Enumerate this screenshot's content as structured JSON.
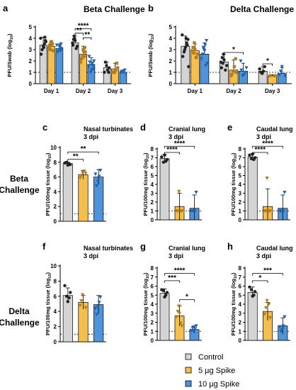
{
  "colors": {
    "control": "#d4d4d4",
    "spike5": "#f5bf4f",
    "spike10": "#4f93d8",
    "control_pt": "#222222",
    "spike5_pt": "#b07d1e",
    "spike10_pt": "#1f63b0"
  },
  "legend": [
    {
      "label": "Control",
      "color_key": "control"
    },
    {
      "label": "5 µg Spike",
      "color_key": "spike5"
    },
    {
      "label": "10 µg Spike",
      "color_key": "spike10"
    }
  ],
  "row_labels": [
    {
      "line1": "Beta",
      "line2": "Challenge"
    },
    {
      "line1": "Delta",
      "line2": "Challenge"
    }
  ],
  "chart_data": [
    {
      "id": "a",
      "type": "bar",
      "panel_letter": "a",
      "title": "Beta Challenge",
      "ylabel": "PFU/Swab (log",
      "ylabel_sub": "10",
      "ylim": [
        0,
        5
      ],
      "yticks": [
        "0",
        "1",
        "2",
        "3",
        "4",
        "5"
      ],
      "categories": [
        "Day 1",
        "Day 2",
        "Day 3"
      ],
      "series": [
        {
          "name": "Control",
          "values": [
            3.4,
            3.6,
            1.4
          ],
          "errors": [
            0.7,
            0.6,
            0.5
          ],
          "points": [
            [
              4.0,
              3.8,
              3.5,
              3.3,
              3.0,
              2.6,
              3.7,
              4.1,
              3.2
            ],
            [
              4.0,
              3.9,
              3.6,
              3.3,
              3.1,
              3.8,
              4.2,
              3.4
            ],
            [
              1.0,
              1.2,
              1.6,
              1.9,
              1.0,
              1.4
            ]
          ]
        },
        {
          "name": "5 µg Spike",
          "values": [
            3.3,
            2.6,
            1.3
          ],
          "errors": [
            0.5,
            0.7,
            0.5
          ],
          "points": [
            [
              3.6,
              3.4,
              3.1,
              2.9,
              3.5,
              3.7,
              3.0,
              3.3
            ],
            [
              3.2,
              2.9,
              2.5,
              2.2,
              1.9,
              2.8,
              2.4,
              3.0
            ],
            [
              1.0,
              1.4,
              1.8,
              1.2,
              1.0
            ]
          ]
        },
        {
          "name": "10 µg Spike",
          "values": [
            3.1,
            1.7,
            1.0
          ],
          "errors": [
            0.4,
            0.6,
            0.2
          ],
          "points": [
            [
              3.5,
              3.2,
              3.0,
              2.8,
              3.4,
              3.1,
              2.9,
              3.3
            ],
            [
              2.4,
              2.0,
              1.6,
              1.2,
              1.0,
              1.9,
              1.5,
              1.3,
              1.8
            ],
            [
              1.0,
              1.1,
              1.0,
              0.9,
              1.2
            ]
          ]
        }
      ],
      "dashed_line": 1,
      "significance": [
        {
          "cat": 1,
          "from": 0,
          "to": 2,
          "label": "****",
          "y": 4.85
        },
        {
          "cat": 1,
          "from": 0,
          "to": 1,
          "label": "**",
          "y": 4.45
        },
        {
          "cat": 1,
          "from": 1,
          "to": 2,
          "label": "**",
          "y": 4.05
        }
      ]
    },
    {
      "id": "b",
      "type": "bar",
      "panel_letter": "b",
      "title": "Delta Challenge",
      "ylabel": "PFU/Swab (log",
      "ylabel_sub": "10",
      "ylim": [
        0,
        5
      ],
      "yticks": [
        "0",
        "1",
        "2",
        "3",
        "4",
        "5"
      ],
      "categories": [
        "Day 1",
        "Day 2",
        "Day 3"
      ],
      "series": [
        {
          "name": "Control",
          "values": [
            3.3,
            1.9,
            1.1
          ],
          "errors": [
            0.9,
            0.7,
            0.4
          ],
          "points": [
            [
              4.3,
              3.9,
              3.6,
              3.2,
              2.8,
              2.4,
              1.5,
              3.4,
              4.0,
              3.0
            ],
            [
              2.6,
              2.3,
              1.9,
              1.6,
              1.2,
              2.1,
              1.8,
              1.4
            ],
            [
              1.5,
              1.1,
              0.9,
              1.0,
              1.3
            ]
          ]
        },
        {
          "name": "5 µg Spike",
          "values": [
            2.9,
            1.2,
            0.7
          ],
          "errors": [
            0.6,
            0.9,
            0.1
          ],
          "points": [
            [
              3.6,
              3.2,
              2.9,
              2.6,
              2.3,
              3.0,
              2.7
            ],
            [
              2.2,
              1.5,
              1.1,
              0.8,
              0.7,
              1.0
            ],
            [
              0.7,
              0.7,
              0.7
            ]
          ]
        },
        {
          "name": "10 µg Spike",
          "values": [
            2.6,
            1.1,
            0.9
          ],
          "errors": [
            1.0,
            0.7,
            0.5
          ],
          "points": [
            [
              3.8,
              3.4,
              3.0,
              2.6,
              2.2,
              1.8,
              1.6,
              2.9,
              3.2
            ],
            [
              2.0,
              1.4,
              1.0,
              0.8,
              0.7,
              1.2
            ],
            [
              1.5,
              1.1,
              0.8,
              0.7
            ]
          ]
        }
      ],
      "dashed_line": 1,
      "significance": [
        {
          "cat": 1,
          "from": 0,
          "to": 2,
          "label": "*",
          "y": 2.75
        },
        {
          "cat": 2,
          "from": 0,
          "to": 1,
          "label": "*",
          "y": 1.75
        }
      ]
    },
    {
      "id": "c",
      "type": "bar",
      "panel_letter": "c",
      "title": "Nasal turbinates",
      "subtitle": "3 dpi",
      "ylabel": "PFU/100mg tissue (log",
      "ylabel_sub": "10",
      "ylim": [
        0,
        10
      ],
      "yticks": [
        "0",
        "2",
        "4",
        "6",
        "8",
        "10"
      ],
      "categories": [
        "Control",
        "5 µg Spike",
        "10 µg Spike"
      ],
      "series": [
        {
          "name": "",
          "values": [
            7.8,
            6.3,
            6.0
          ],
          "errors": [
            0.2,
            0.6,
            1.0
          ],
          "points": [
            [
              7.9,
              7.7,
              7.8,
              7.6,
              8.0
            ],
            [
              6.6,
              6.2,
              5.9,
              6.5,
              6.8
            ],
            [
              6.9,
              6.1,
              5.4,
              4.8,
              6.4
            ]
          ]
        }
      ],
      "dashed_line": 1,
      "significance": [
        {
          "from": 0,
          "to": 2,
          "label": "**",
          "y": 9.4
        },
        {
          "from": 0,
          "to": 1,
          "label": "**",
          "y": 8.4
        }
      ]
    },
    {
      "id": "d",
      "type": "bar",
      "panel_letter": "d",
      "title": "Cranial lung",
      "subtitle": "3 dpi",
      "ylabel": "PFU/100mg tissue (log",
      "ylabel_sub": "10",
      "ylim": [
        0,
        8
      ],
      "yticks": [
        "0",
        "1",
        "2",
        "3",
        "4",
        "5",
        "6",
        "7",
        "8"
      ],
      "categories": [
        "Control",
        "5 µg Spike",
        "10 µg Spike"
      ],
      "series": [
        {
          "name": "",
          "values": [
            6.9,
            1.5,
            1.3
          ],
          "errors": [
            0.5,
            1.5,
            1.5
          ],
          "points": [
            [
              7.1,
              6.8,
              6.6,
              7.3,
              6.5
            ],
            [
              3.2,
              1.0,
              1.0,
              1.0,
              1.0
            ],
            [
              3.1,
              1.0,
              1.0,
              1.0,
              1.0
            ]
          ]
        }
      ],
      "dashed_line": 1,
      "significance": [
        {
          "from": 0,
          "to": 2,
          "label": "****",
          "y": 8.3
        },
        {
          "from": 0,
          "to": 1,
          "label": "****",
          "y": 7.6
        }
      ]
    },
    {
      "id": "e",
      "type": "bar",
      "panel_letter": "e",
      "title": "Caudal lung",
      "subtitle": "3 dpi",
      "ylabel": "PFU/100mg tissue (log",
      "ylabel_sub": "10",
      "ylim": [
        0,
        8
      ],
      "yticks": [
        "0",
        "1",
        "2",
        "3",
        "4",
        "5",
        "6",
        "7",
        "8"
      ],
      "categories": [
        "Control",
        "5 µg Spike",
        "10 µg Spike"
      ],
      "series": [
        {
          "name": "",
          "values": [
            7.1,
            1.5,
            1.3
          ],
          "errors": [
            0.4,
            2.0,
            1.5
          ],
          "points": [
            [
              7.3,
              7.0,
              6.8,
              7.4,
              6.9
            ],
            [
              4.7,
              1.0,
              1.0,
              1.0,
              1.0
            ],
            [
              3.1,
              1.0,
              1.0,
              1.0,
              1.0
            ]
          ]
        }
      ],
      "dashed_line": 1,
      "significance": [
        {
          "from": 0,
          "to": 2,
          "label": "****",
          "y": 8.3
        },
        {
          "from": 0,
          "to": 1,
          "label": "****",
          "y": 7.6
        }
      ]
    },
    {
      "id": "f",
      "type": "bar",
      "panel_letter": "f",
      "title": "Nasal turbinates",
      "subtitle": "3 dpi",
      "ylabel": "PFU/100mg tissue (log",
      "ylabel_sub": "10",
      "ylim": [
        0,
        10
      ],
      "yticks": [
        "0",
        "2",
        "4",
        "6",
        "8",
        "10"
      ],
      "categories": [
        "Control",
        "5 µg Spike",
        "10 µg Spike"
      ],
      "series": [
        {
          "name": "",
          "values": [
            6.1,
            5.2,
            4.9
          ],
          "errors": [
            1.0,
            0.9,
            1.2
          ],
          "points": [
            [
              7.4,
              6.5,
              5.8,
              5.3,
              6.0
            ],
            [
              6.2,
              5.4,
              4.8,
              4.5
            ],
            [
              5.9,
              5.2,
              4.6,
              3.6,
              4.4
            ]
          ]
        }
      ],
      "dashed_line": 1,
      "significance": []
    },
    {
      "id": "g",
      "type": "bar",
      "panel_letter": "g",
      "title": "Cranial lung",
      "subtitle": "3 dpi",
      "ylabel": "PFU/100mg tissue (log",
      "ylabel_sub": "10",
      "ylim": [
        0,
        8
      ],
      "yticks": [
        "0",
        "1",
        "2",
        "3",
        "4",
        "5",
        "6",
        "7",
        "8"
      ],
      "categories": [
        "Control",
        "5 µg Spike",
        "10 µg Spike"
      ],
      "series": [
        {
          "name": "",
          "values": [
            5.2,
            2.7,
            1.2
          ],
          "errors": [
            0.5,
            1.1,
            0.4
          ],
          "points": [
            [
              5.6,
              5.3,
              5.0,
              4.8,
              5.5
            ],
            [
              3.8,
              3.2,
              2.6,
              1.6,
              1.9,
              3.0
            ],
            [
              1.6,
              1.3,
              1.0,
              1.4,
              1.1
            ]
          ]
        }
      ],
      "dashed_line": 1,
      "significance": [
        {
          "from": 0,
          "to": 2,
          "label": "****",
          "y": 7.4
        },
        {
          "from": 0,
          "to": 1,
          "label": "***",
          "y": 6.6
        },
        {
          "from": 1,
          "to": 2,
          "label": "*",
          "y": 4.5
        }
      ]
    },
    {
      "id": "h",
      "type": "bar",
      "panel_letter": "h",
      "title": "Caudal lung",
      "subtitle": "3 dpi",
      "ylabel": "PFU/100mg tissue (log",
      "ylabel_sub": "10",
      "ylim": [
        0,
        8
      ],
      "yticks": [
        "0",
        "1",
        "2",
        "3",
        "4",
        "5",
        "6",
        "7",
        "8"
      ],
      "categories": [
        "Control",
        "5 µg Spike",
        "10 µg Spike"
      ],
      "series": [
        {
          "name": "",
          "values": [
            5.3,
            3.2,
            1.6
          ],
          "errors": [
            0.6,
            1.0,
            0.9
          ],
          "points": [
            [
              5.9,
              5.4,
              5.0,
              4.9,
              5.6
            ],
            [
              4.4,
              3.6,
              2.9,
              2.5,
              4.0
            ],
            [
              2.6,
              1.6,
              1.2,
              1.0,
              1.5
            ]
          ]
        }
      ],
      "dashed_line": 1,
      "significance": [
        {
          "from": 0,
          "to": 2,
          "label": "***",
          "y": 7.4
        },
        {
          "from": 0,
          "to": 1,
          "label": "*",
          "y": 6.6
        }
      ]
    }
  ]
}
